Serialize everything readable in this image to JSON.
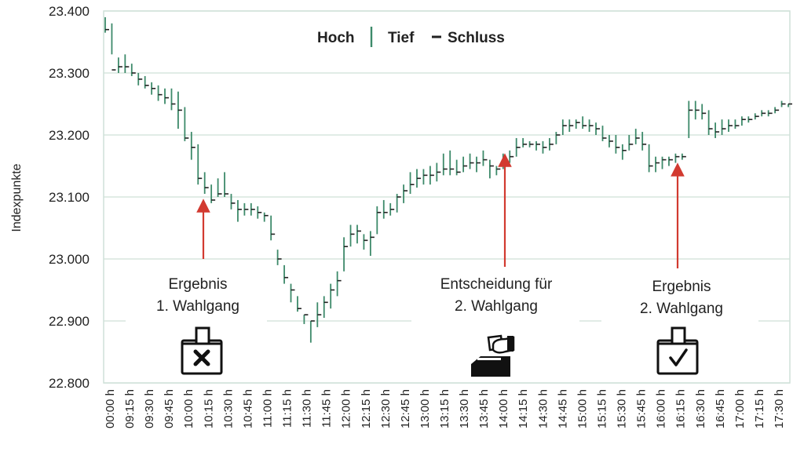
{
  "chart_data": {
    "type": "ohlc",
    "ylabel": "Indexpunkte",
    "ylim": [
      22800,
      23400
    ],
    "y_ticks": [
      "23.400",
      "23.300",
      "23.200",
      "23.100",
      "23.000",
      "22.900",
      "22.800"
    ],
    "y_tick_values": [
      23400,
      23300,
      23200,
      23100,
      23000,
      22900,
      22800
    ],
    "x_labels": [
      "00:00 h",
      "09:15 h",
      "09:30 h",
      "09:45 h",
      "10:00 h",
      "10:15 h",
      "10:30 h",
      "10:45 h",
      "11:00 h",
      "11:15 h",
      "11:30 h",
      "11:45 h",
      "12:00 h",
      "12:15 h",
      "12:30 h",
      "12:45 h",
      "13:00 h",
      "13:15 h",
      "13:30 h",
      "13:45 h",
      "14:00 h",
      "14:15 h",
      "14:30 h",
      "14:45 h",
      "15:00 h",
      "15:15 h",
      "15:30 h",
      "15:45 h",
      "16:00 h",
      "16:15 h",
      "16:30 h",
      "16:45 h",
      "17:00 h",
      "17:15 h",
      "17:30 h"
    ],
    "legend": {
      "high": "Hoch",
      "low": "Tief",
      "close": "Schluss"
    },
    "series": {
      "high": [
        23390,
        23380,
        23325,
        23330,
        23315,
        23300,
        23295,
        23285,
        23280,
        23275,
        23275,
        23270,
        23245,
        23205,
        23185,
        23140,
        23120,
        23130,
        23140,
        23105,
        23095,
        23090,
        23090,
        23085,
        23075,
        23070,
        23015,
        22990,
        22960,
        22940,
        22910,
        22900,
        22930,
        22940,
        22960,
        22980,
        23035,
        23055,
        23055,
        23040,
        23045,
        23085,
        23095,
        23090,
        23105,
        23120,
        23140,
        23145,
        23145,
        23150,
        23155,
        23170,
        23175,
        23160,
        23165,
        23170,
        23165,
        23175,
        23160,
        23150,
        23170,
        23175,
        23195,
        23195,
        23190,
        23190,
        23190,
        23195,
        23205,
        23225,
        23225,
        23225,
        23230,
        23225,
        23220,
        23215,
        23200,
        23200,
        23185,
        23200,
        23210,
        23205,
        23185,
        23165,
        23165,
        23165,
        23170,
        23170,
        23255,
        23255,
        23250,
        23240,
        23220,
        23225,
        23225,
        23225,
        23230,
        23230,
        23235,
        23240,
        23240,
        23245,
        23255,
        23250
      ],
      "low": [
        23365,
        23330,
        23300,
        23300,
        23295,
        23280,
        23275,
        23265,
        23255,
        23250,
        23240,
        23210,
        23190,
        23160,
        23120,
        23105,
        23090,
        23100,
        23100,
        23080,
        23060,
        23070,
        23070,
        23065,
        23060,
        23030,
        22990,
        22960,
        22930,
        22915,
        22895,
        22865,
        22890,
        22905,
        22920,
        22940,
        22980,
        23020,
        23025,
        23015,
        23005,
        23040,
        23065,
        23070,
        23075,
        23090,
        23105,
        23115,
        23120,
        23120,
        23125,
        23135,
        23135,
        23135,
        23140,
        23145,
        23140,
        23150,
        23130,
        23135,
        23145,
        23155,
        23165,
        23180,
        23180,
        23175,
        23170,
        23175,
        23185,
        23200,
        23205,
        23210,
        23210,
        23205,
        23200,
        23190,
        23180,
        23170,
        23160,
        23175,
        23185,
        23175,
        23140,
        23140,
        23145,
        23150,
        23155,
        23160,
        23195,
        23225,
        23225,
        23200,
        23195,
        23200,
        23205,
        23210,
        23215,
        23220,
        23225,
        23230,
        23230,
        23235,
        23245,
        23245
      ],
      "close": [
        23370,
        23305,
        23310,
        23310,
        23300,
        23290,
        23280,
        23275,
        23265,
        23260,
        23250,
        23240,
        23195,
        23180,
        23130,
        23115,
        23095,
        23105,
        23105,
        23090,
        23080,
        23080,
        23080,
        23075,
        23070,
        23040,
        23000,
        22970,
        22950,
        22920,
        22910,
        22900,
        22910,
        22930,
        22950,
        22965,
        23020,
        23040,
        23045,
        23030,
        23035,
        23075,
        23075,
        23080,
        23100,
        23110,
        23120,
        23130,
        23135,
        23135,
        23140,
        23145,
        23145,
        23140,
        23150,
        23155,
        23155,
        23160,
        23150,
        23145,
        23160,
        23165,
        23180,
        23185,
        23185,
        23185,
        23180,
        23185,
        23200,
        23215,
        23215,
        23220,
        23215,
        23215,
        23210,
        23195,
        23190,
        23180,
        23175,
        23185,
        23195,
        23185,
        23150,
        23155,
        23160,
        23160,
        23165,
        23165,
        23240,
        23240,
        23235,
        23210,
        23205,
        23210,
        23215,
        23215,
        23225,
        23225,
        23230,
        23235,
        23235,
        23240,
        23250,
        23250
      ]
    },
    "annotations": [
      {
        "lines": [
          "Ergebnis",
          "1. Wahlgang"
        ],
        "icon": "ballot-box-x-icon"
      },
      {
        "lines": [
          "Entscheidung für",
          "2. Wahlgang"
        ],
        "icon": "hand-voting-icon"
      },
      {
        "lines": [
          "Ergebnis",
          "2. Wahlgang"
        ],
        "icon": "ballot-box-check-icon"
      }
    ],
    "colors": {
      "bars": "#3d8a6a",
      "grid": "#cfe0d8",
      "frame": "#cfe0d8",
      "arrow": "#d23a30",
      "text": "#222222"
    },
    "grid": true,
    "legend_position": "top-center"
  }
}
